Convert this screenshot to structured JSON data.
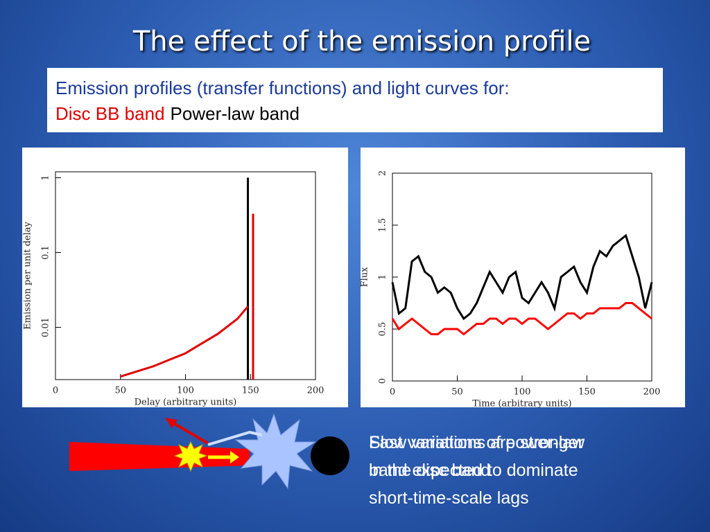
{
  "title": "The effect of the emission profile",
  "textbox": {
    "line1": "Emission profiles (transfer functions) and light curves for:",
    "disc": "Disc BB band",
    "powerlaw": "Power-law band"
  },
  "captions": [
    "Slow variations are stronger in the disc band",
    "Fast variations of power-law band expected to dominate short-time-scale lags"
  ],
  "chart_data": [
    {
      "type": "line",
      "xlabel": "Delay (arbitrary units)",
      "ylabel": "Emission per unit delay",
      "xlim": [
        0,
        200
      ],
      "xticks": [
        0,
        50,
        100,
        150,
        200
      ],
      "ylim": [
        0.002,
        1.2
      ],
      "yticks": [
        0.01,
        0.1,
        1
      ],
      "log_y": true,
      "series": [
        {
          "color": "#000000",
          "x": [
            148,
            148
          ],
          "values": [
            0.002,
            1
          ]
        },
        {
          "color": "#e00000",
          "x": [
            50,
            75,
            100,
            125,
            140,
            148,
            150,
            152,
            152
          ],
          "values": [
            0.0022,
            0.003,
            0.0045,
            0.0082,
            0.013,
            0.019,
            null,
            0.002,
            0.33
          ]
        }
      ]
    },
    {
      "type": "line",
      "xlabel": "Time (arbitrary units)",
      "ylabel": "Flux",
      "xlim": [
        0,
        200
      ],
      "xticks": [
        0,
        50,
        100,
        150,
        200
      ],
      "ylim": [
        0,
        2
      ],
      "yticks": [
        0,
        0.5,
        1,
        1.5,
        2
      ],
      "log_y": false,
      "series": [
        {
          "color": "#000000",
          "x": [
            0,
            5,
            10,
            15,
            20,
            25,
            30,
            35,
            40,
            45,
            50,
            55,
            60,
            65,
            70,
            75,
            80,
            85,
            90,
            95,
            100,
            105,
            110,
            115,
            120,
            125,
            130,
            135,
            140,
            145,
            150,
            155,
            160,
            165,
            170,
            175,
            180,
            185,
            190,
            195,
            200
          ],
          "values": [
            0.95,
            0.65,
            0.7,
            1.15,
            1.2,
            1.05,
            1.0,
            0.85,
            0.9,
            0.85,
            0.7,
            0.6,
            0.65,
            0.75,
            0.9,
            1.05,
            0.95,
            0.85,
            1.0,
            1.05,
            0.8,
            0.75,
            0.85,
            0.95,
            0.85,
            0.7,
            1.0,
            1.05,
            1.1,
            0.95,
            0.85,
            1.1,
            1.25,
            1.2,
            1.3,
            1.35,
            1.4,
            1.2,
            1.0,
            0.7,
            0.95
          ]
        },
        {
          "color": "#ff0000",
          "x": [
            0,
            5,
            10,
            15,
            20,
            25,
            30,
            35,
            40,
            45,
            50,
            55,
            60,
            65,
            70,
            75,
            80,
            85,
            90,
            95,
            100,
            105,
            110,
            115,
            120,
            125,
            130,
            135,
            140,
            145,
            150,
            155,
            160,
            165,
            170,
            175,
            180,
            185,
            190,
            195,
            200
          ],
          "values": [
            0.6,
            0.5,
            0.55,
            0.6,
            0.55,
            0.5,
            0.45,
            0.45,
            0.5,
            0.5,
            0.5,
            0.45,
            0.5,
            0.55,
            0.55,
            0.6,
            0.6,
            0.55,
            0.6,
            0.6,
            0.55,
            0.6,
            0.6,
            0.55,
            0.5,
            0.55,
            0.6,
            0.65,
            0.65,
            0.6,
            0.65,
            0.65,
            0.7,
            0.7,
            0.7,
            0.7,
            0.75,
            0.75,
            0.7,
            0.65,
            0.6
          ]
        }
      ]
    }
  ]
}
